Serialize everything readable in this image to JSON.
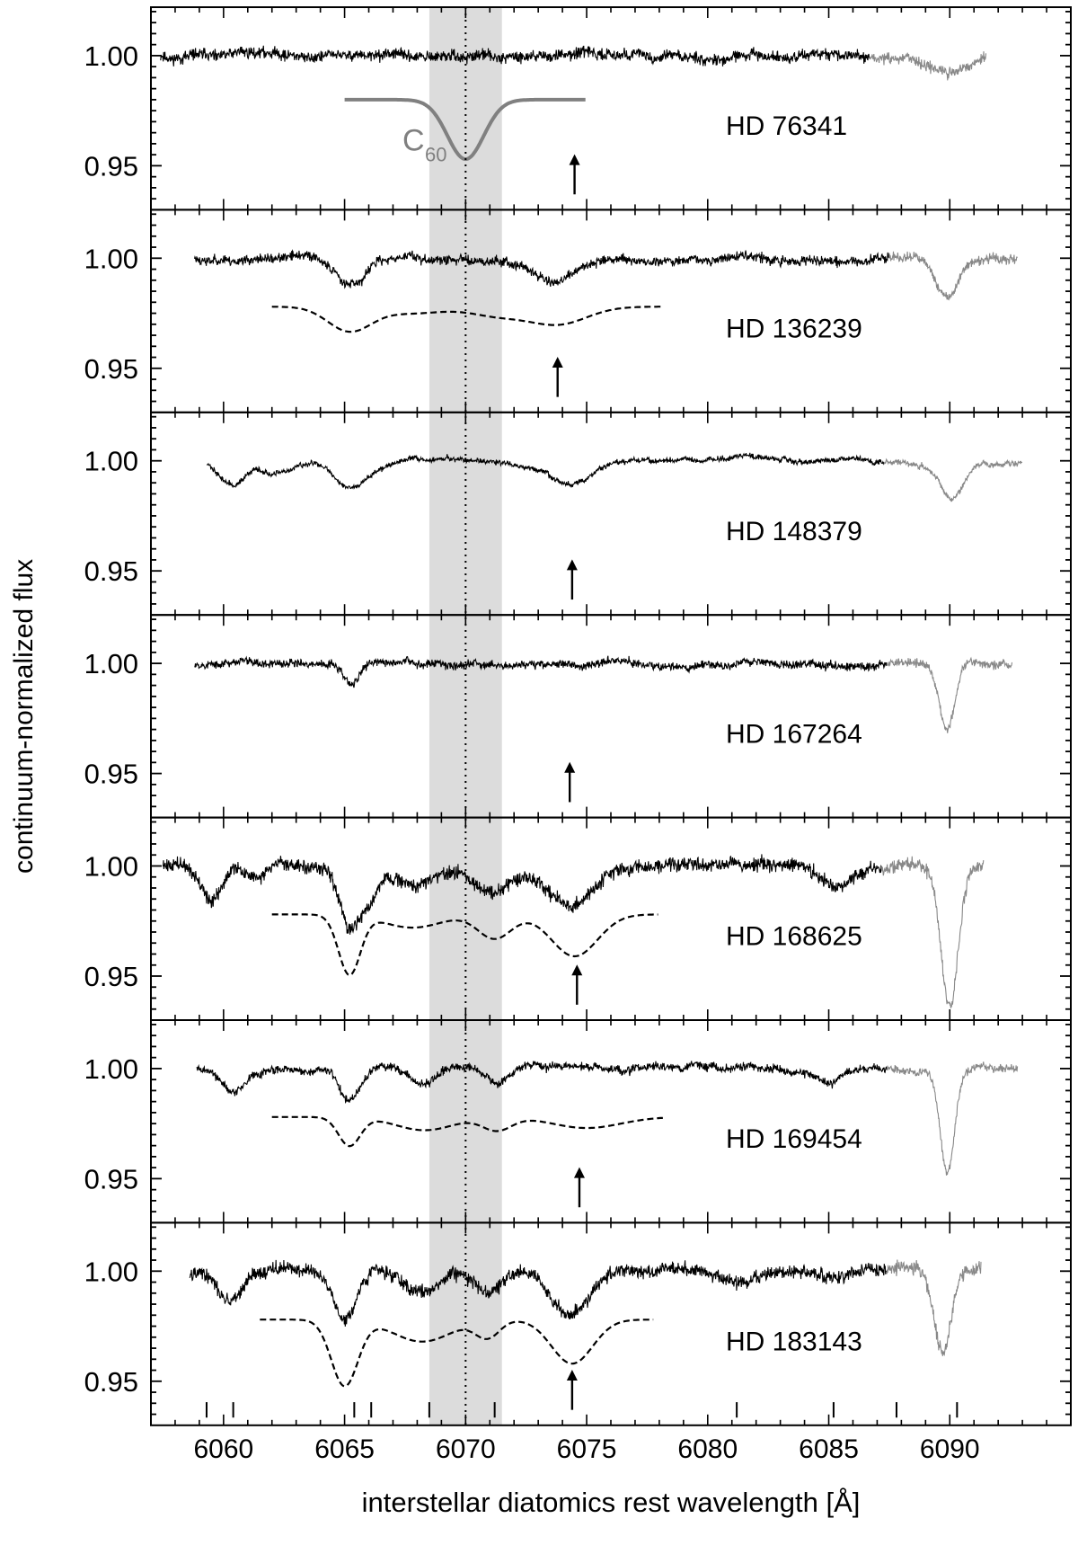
{
  "chart_data": {
    "type": "line",
    "ylabel": "continuum-normalized flux",
    "xlabel": "interstellar diatomics rest wavelength [Å]",
    "xlim": [
      6057,
      6095
    ],
    "ylim": [
      0.93,
      1.022
    ],
    "x_ticks": [
      6060,
      6065,
      6070,
      6075,
      6080,
      6085,
      6090
    ],
    "x_tick_labels": [
      "6060",
      "6065",
      "6070",
      "6075",
      "6080",
      "6085",
      "6090"
    ],
    "y_ticks": [
      0.95,
      1.0
    ],
    "y_tick_labels": [
      "0.95",
      "1.00"
    ],
    "shaded_band": {
      "x_start": 6068.5,
      "x_end": 6071.5,
      "color": "#dcdcdc"
    },
    "reference_line_x": 6070,
    "c60_label": "C",
    "c60_subscript": "60",
    "line_marks_x": [
      6059.3,
      6060.4,
      6065.4,
      6066.1,
      6068.5,
      6071.2,
      6081.2,
      6085.2,
      6087.8,
      6090.3
    ],
    "panels": [
      {
        "star": "HD 76341",
        "range": [
          6057.4,
          6091.5
        ],
        "gray_from": 6086.7,
        "noise": 0.0018,
        "seed": 11,
        "arrow_x": 6074.5,
        "dips": [
          {
            "x": 6090.0,
            "depth": 0.008,
            "width": 0.9
          }
        ],
        "model": {
          "style": "solid",
          "color": "#808080",
          "range": [
            6065,
            6075
          ],
          "continuum": 0.98,
          "dips": [
            {
              "x": 6070,
              "depth": 0.027,
              "width": 0.75
            }
          ]
        }
      },
      {
        "star": "HD 136239",
        "range": [
          6058.8,
          6092.8
        ],
        "gray_from": 6087.5,
        "noise": 0.0015,
        "seed": 23,
        "arrow_x": 6073.8,
        "dips": [
          {
            "x": 6065.3,
            "depth": 0.013,
            "width": 0.6
          },
          {
            "x": 6073.8,
            "depth": 0.01,
            "width": 0.9
          },
          {
            "x": 6089.9,
            "depth": 0.018,
            "width": 0.45
          }
        ],
        "model": {
          "style": "dashed",
          "color": "#000000",
          "range": [
            6062,
            6078.2
          ],
          "continuum": 0.978,
          "dips": [
            {
              "x": 6065.2,
              "depth": 0.011,
              "width": 0.9
            },
            {
              "x": 6067.8,
              "depth": 0.003,
              "width": 1.3
            },
            {
              "x": 6071.3,
              "depth": 0.004,
              "width": 1.1
            },
            {
              "x": 6073.8,
              "depth": 0.008,
              "width": 1.2
            }
          ]
        }
      },
      {
        "star": "HD 148379",
        "range": [
          6059.3,
          6093.0
        ],
        "gray_from": 6087.3,
        "noise": 0.0008,
        "seed": 37,
        "arrow_x": 6074.4,
        "dips": [
          {
            "x": 6060.4,
            "depth": 0.01,
            "width": 0.5
          },
          {
            "x": 6062.0,
            "depth": 0.004,
            "width": 0.7
          },
          {
            "x": 6065.2,
            "depth": 0.012,
            "width": 0.6
          },
          {
            "x": 6066.5,
            "depth": 0.004,
            "width": 0.6
          },
          {
            "x": 6074.3,
            "depth": 0.011,
            "width": 0.9
          },
          {
            "x": 6090.1,
            "depth": 0.017,
            "width": 0.5
          }
        ],
        "model": null
      },
      {
        "star": "HD 167264",
        "range": [
          6058.8,
          6092.6
        ],
        "gray_from": 6087.4,
        "noise": 0.0013,
        "seed": 53,
        "arrow_x": 6074.3,
        "dips": [
          {
            "x": 6065.3,
            "depth": 0.01,
            "width": 0.35
          },
          {
            "x": 6089.9,
            "depth": 0.03,
            "width": 0.32
          }
        ],
        "model": null
      },
      {
        "star": "HD 168625",
        "range": [
          6057.5,
          6091.4
        ],
        "gray_from": 6087.2,
        "noise": 0.0022,
        "seed": 71,
        "arrow_x": 6074.6,
        "dips": [
          {
            "x": 6059.5,
            "depth": 0.016,
            "width": 0.45
          },
          {
            "x": 6061.3,
            "depth": 0.006,
            "width": 0.5
          },
          {
            "x": 6065.2,
            "depth": 0.028,
            "width": 0.4
          },
          {
            "x": 6066.0,
            "depth": 0.015,
            "width": 0.35
          },
          {
            "x": 6067.9,
            "depth": 0.01,
            "width": 0.9
          },
          {
            "x": 6071.1,
            "depth": 0.012,
            "width": 0.8
          },
          {
            "x": 6074.3,
            "depth": 0.017,
            "width": 0.9
          },
          {
            "x": 6085.2,
            "depth": 0.01,
            "width": 0.6
          },
          {
            "x": 6090.0,
            "depth": 0.064,
            "width": 0.35
          }
        ],
        "model": {
          "style": "dashed",
          "color": "#000000",
          "range": [
            6062,
            6078
          ],
          "continuum": 0.978,
          "dips": [
            {
              "x": 6065.2,
              "depth": 0.027,
              "width": 0.45
            },
            {
              "x": 6067.8,
              "depth": 0.006,
              "width": 1.2
            },
            {
              "x": 6071.2,
              "depth": 0.011,
              "width": 0.7
            },
            {
              "x": 6074.5,
              "depth": 0.019,
              "width": 0.95
            }
          ]
        }
      },
      {
        "star": "HD 169454",
        "range": [
          6058.9,
          6092.8
        ],
        "gray_from": 6087.4,
        "noise": 0.0013,
        "seed": 89,
        "arrow_x": 6074.7,
        "dips": [
          {
            "x": 6060.4,
            "depth": 0.01,
            "width": 0.5
          },
          {
            "x": 6065.2,
            "depth": 0.014,
            "width": 0.4
          },
          {
            "x": 6068.3,
            "depth": 0.006,
            "width": 0.5
          },
          {
            "x": 6071.3,
            "depth": 0.006,
            "width": 0.5
          },
          {
            "x": 6085.0,
            "depth": 0.006,
            "width": 0.5
          },
          {
            "x": 6089.9,
            "depth": 0.046,
            "width": 0.3
          }
        ],
        "model": {
          "style": "dashed",
          "color": "#000000",
          "range": [
            6062,
            6078.2
          ],
          "continuum": 0.978,
          "dips": [
            {
              "x": 6065.2,
              "depth": 0.013,
              "width": 0.45
            },
            {
              "x": 6068.3,
              "depth": 0.006,
              "width": 1.2
            },
            {
              "x": 6071.3,
              "depth": 0.006,
              "width": 0.6
            },
            {
              "x": 6075.0,
              "depth": 0.005,
              "width": 1.4
            }
          ]
        }
      },
      {
        "star": "HD 183143",
        "range": [
          6058.6,
          6091.3
        ],
        "gray_from": 6087.4,
        "noise": 0.0022,
        "seed": 97,
        "arrow_x": 6074.4,
        "dips": [
          {
            "x": 6060.3,
            "depth": 0.016,
            "width": 0.5
          },
          {
            "x": 6065.0,
            "depth": 0.022,
            "width": 0.5
          },
          {
            "x": 6068.2,
            "depth": 0.01,
            "width": 0.7
          },
          {
            "x": 6071.0,
            "depth": 0.01,
            "width": 0.6
          },
          {
            "x": 6074.3,
            "depth": 0.02,
            "width": 0.8
          },
          {
            "x": 6081.2,
            "depth": 0.006,
            "width": 0.6
          },
          {
            "x": 6085.2,
            "depth": 0.004,
            "width": 0.5
          },
          {
            "x": 6089.7,
            "depth": 0.038,
            "width": 0.35
          }
        ],
        "model": {
          "style": "dashed",
          "color": "#000000",
          "range": [
            6061.5,
            6077.8
          ],
          "continuum": 0.978,
          "dips": [
            {
              "x": 6065.0,
              "depth": 0.03,
              "width": 0.55
            },
            {
              "x": 6068.2,
              "depth": 0.01,
              "width": 1.2
            },
            {
              "x": 6070.9,
              "depth": 0.008,
              "width": 0.5
            },
            {
              "x": 6074.4,
              "depth": 0.02,
              "width": 0.85
            }
          ]
        }
      }
    ]
  }
}
